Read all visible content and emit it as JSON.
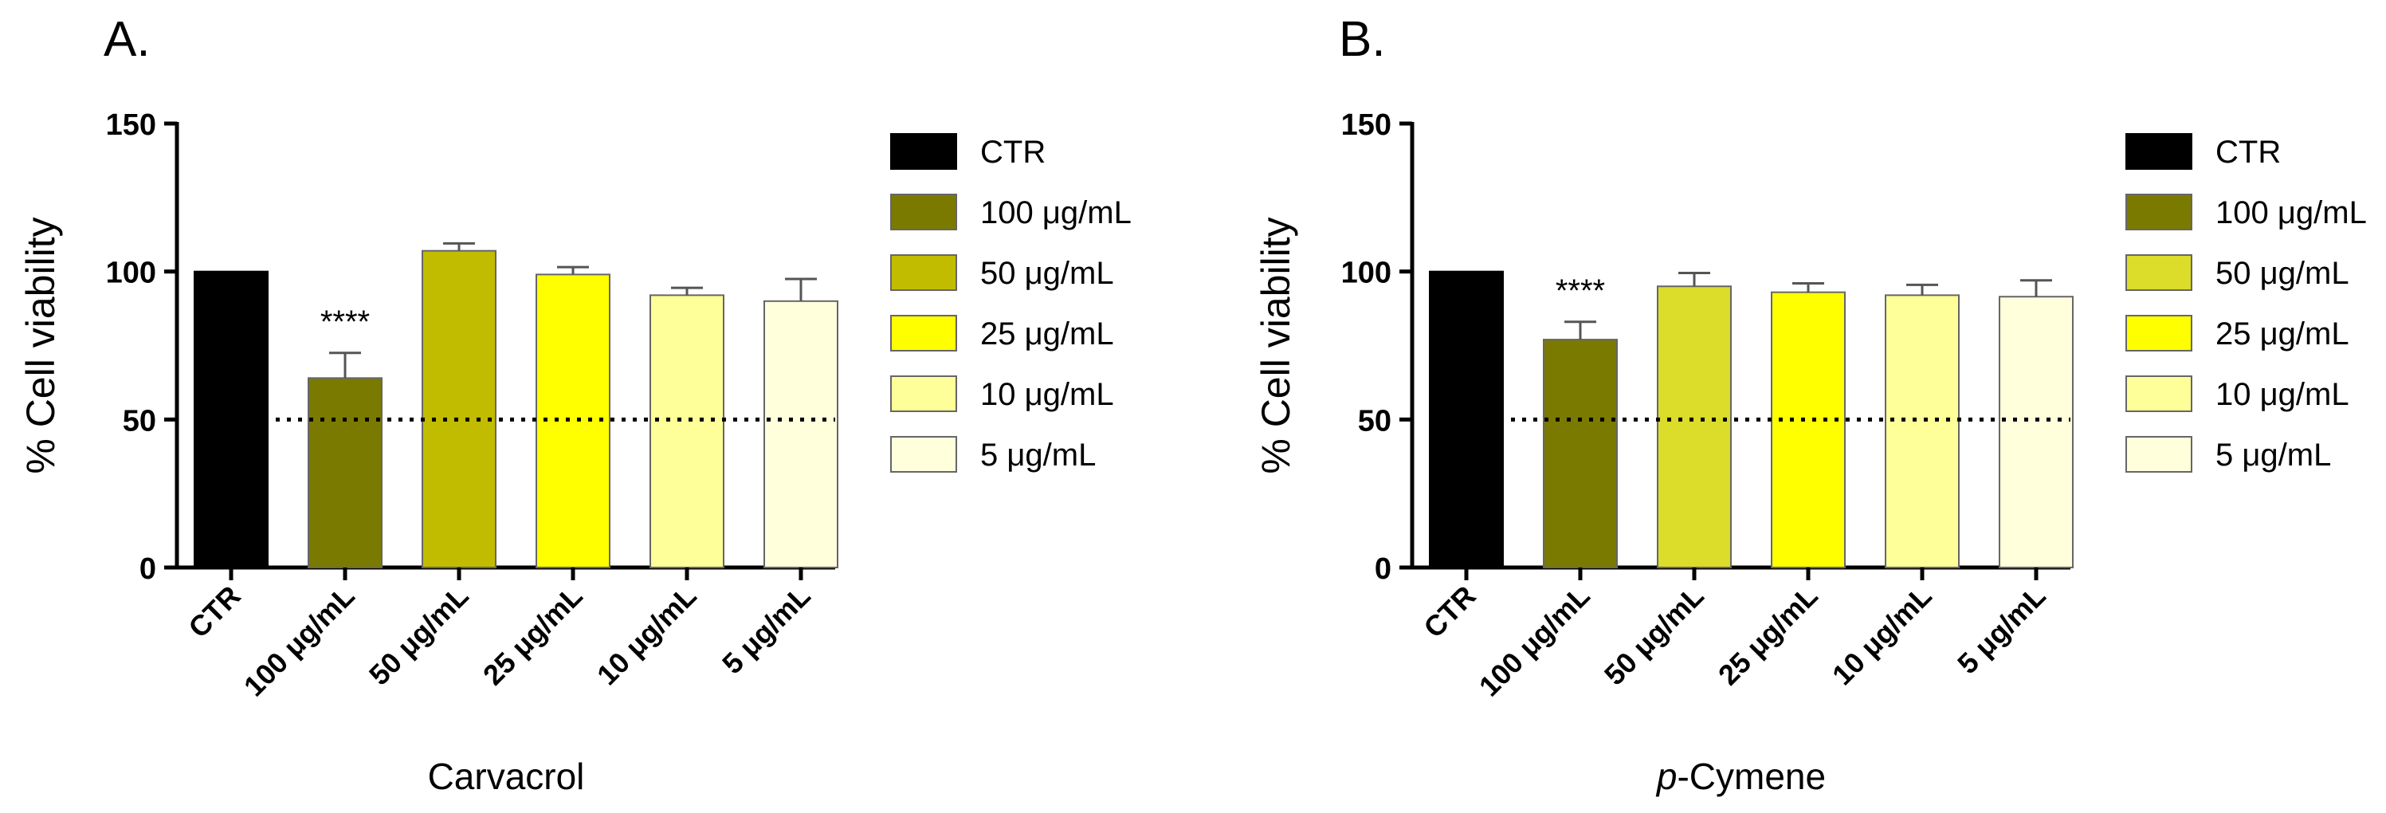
{
  "chart_data": [
    {
      "type": "bar",
      "panel_label": "A.",
      "title": "",
      "xlabel": "Carvacrol",
      "xlabel_prefix": "",
      "ylabel": "% Cell viability",
      "ylim": [
        0,
        150
      ],
      "yticks": [
        "0",
        "50",
        "100",
        "150"
      ],
      "categories": [
        "CTR",
        "100 μg/mL",
        "50 μg/mL",
        "25 μg/mL",
        "10 μg/mL",
        "5 μg/mL"
      ],
      "values": [
        100,
        64,
        107,
        99,
        92,
        90
      ],
      "errors": [
        0,
        8.5,
        2.5,
        2.5,
        2.5,
        7.5
      ],
      "colors": [
        "#000000",
        "#7b7a00",
        "#c2bc00",
        "#ffff00",
        "#ffff99",
        "#ffffdc"
      ],
      "significance": [
        "",
        "****",
        "",
        "",
        "",
        ""
      ],
      "reference_line": 50,
      "legend": [
        "CTR",
        "100 μg/mL",
        "50 μg/mL",
        "25 μg/mL",
        "10 μg/mL",
        "5 μg/mL"
      ],
      "legend_position": "right",
      "grid": false
    },
    {
      "type": "bar",
      "panel_label": "B.",
      "title": "",
      "xlabel": "-Cymene",
      "xlabel_prefix": "p",
      "ylabel": "% Cell viability",
      "ylim": [
        0,
        150
      ],
      "yticks": [
        "0",
        "50",
        "100",
        "150"
      ],
      "categories": [
        "CTR",
        "100 μg/mL",
        "50 μg/mL",
        "25 μg/mL",
        "10 μg/mL",
        "5 μg/mL"
      ],
      "values": [
        100,
        77,
        95,
        93,
        92,
        91.5
      ],
      "errors": [
        0,
        6,
        4.5,
        3,
        3.5,
        5.5
      ],
      "colors": [
        "#000000",
        "#7b7a00",
        "#dcdc2a",
        "#ffff00",
        "#ffff99",
        "#ffffdc"
      ],
      "significance": [
        "",
        "****",
        "",
        "",
        "",
        ""
      ],
      "reference_line": 50,
      "legend": [
        "CTR",
        "100 μg/mL",
        "50 μg/mL",
        "25 μg/mL",
        "10 μg/mL",
        "5 μg/mL"
      ],
      "legend_position": "right",
      "grid": false
    }
  ]
}
